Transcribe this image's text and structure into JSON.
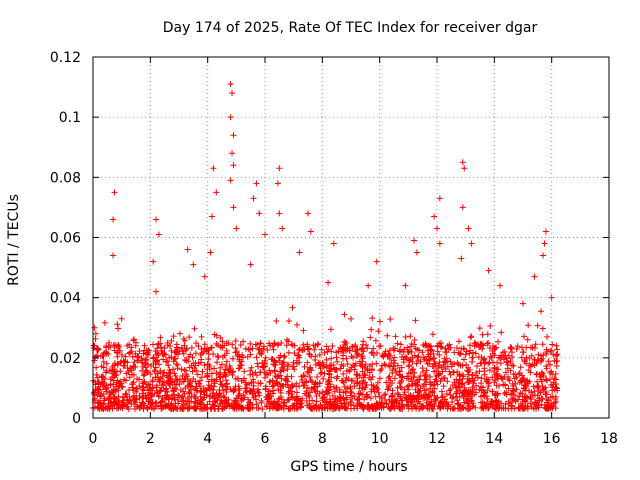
{
  "chart_data": {
    "type": "scatter",
    "title": "Day 174 of 2025, Rate Of TEC Index for receiver dgar",
    "xlabel": "GPS time / hours",
    "ylabel": "ROTI / TECUs",
    "xlim": [
      0,
      18
    ],
    "ylim": [
      0,
      0.12
    ],
    "xticks": [
      "0",
      "2",
      "4",
      "6",
      "8",
      "10",
      "12",
      "14",
      "16",
      "18"
    ],
    "yticks": [
      "0",
      "0.02",
      "0.04",
      "0.06",
      "0.08",
      "0.1",
      "0.12"
    ],
    "grid": true,
    "marker": "plus",
    "color": "#ff0000",
    "x_data_range": [
      0,
      16.2
    ],
    "baseline_band": [
      0.003,
      0.025
    ],
    "notable_points": [
      {
        "x": 0.75,
        "y": 0.075
      },
      {
        "x": 0.7,
        "y": 0.066
      },
      {
        "x": 0.7,
        "y": 0.054
      },
      {
        "x": 1.0,
        "y": 0.033
      },
      {
        "x": 1.5,
        "y": 0.025
      },
      {
        "x": 2.1,
        "y": 0.052
      },
      {
        "x": 2.2,
        "y": 0.066
      },
      {
        "x": 2.3,
        "y": 0.061
      },
      {
        "x": 2.2,
        "y": 0.042
      },
      {
        "x": 3.3,
        "y": 0.056
      },
      {
        "x": 3.5,
        "y": 0.051
      },
      {
        "x": 3.9,
        "y": 0.047
      },
      {
        "x": 4.1,
        "y": 0.055
      },
      {
        "x": 4.2,
        "y": 0.083
      },
      {
        "x": 4.3,
        "y": 0.075
      },
      {
        "x": 4.15,
        "y": 0.067
      },
      {
        "x": 4.8,
        "y": 0.111
      },
      {
        "x": 4.85,
        "y": 0.108
      },
      {
        "x": 4.8,
        "y": 0.1
      },
      {
        "x": 4.9,
        "y": 0.094
      },
      {
        "x": 4.85,
        "y": 0.088
      },
      {
        "x": 4.9,
        "y": 0.084
      },
      {
        "x": 4.8,
        "y": 0.079
      },
      {
        "x": 4.9,
        "y": 0.07
      },
      {
        "x": 5.0,
        "y": 0.063
      },
      {
        "x": 5.5,
        "y": 0.051
      },
      {
        "x": 5.7,
        "y": 0.078
      },
      {
        "x": 5.6,
        "y": 0.073
      },
      {
        "x": 5.8,
        "y": 0.068
      },
      {
        "x": 6.0,
        "y": 0.061
      },
      {
        "x": 6.5,
        "y": 0.083
      },
      {
        "x": 6.45,
        "y": 0.078
      },
      {
        "x": 6.5,
        "y": 0.068
      },
      {
        "x": 6.6,
        "y": 0.063
      },
      {
        "x": 7.2,
        "y": 0.055
      },
      {
        "x": 7.5,
        "y": 0.068
      },
      {
        "x": 7.6,
        "y": 0.062
      },
      {
        "x": 8.4,
        "y": 0.058
      },
      {
        "x": 8.2,
        "y": 0.045
      },
      {
        "x": 9.9,
        "y": 0.052
      },
      {
        "x": 9.6,
        "y": 0.044
      },
      {
        "x": 10.9,
        "y": 0.044
      },
      {
        "x": 11.2,
        "y": 0.059
      },
      {
        "x": 11.3,
        "y": 0.055
      },
      {
        "x": 11.9,
        "y": 0.067
      },
      {
        "x": 12.1,
        "y": 0.073
      },
      {
        "x": 12.0,
        "y": 0.063
      },
      {
        "x": 12.1,
        "y": 0.058
      },
      {
        "x": 12.9,
        "y": 0.085
      },
      {
        "x": 12.95,
        "y": 0.083
      },
      {
        "x": 12.9,
        "y": 0.07
      },
      {
        "x": 13.1,
        "y": 0.063
      },
      {
        "x": 13.2,
        "y": 0.058
      },
      {
        "x": 12.85,
        "y": 0.053
      },
      {
        "x": 13.8,
        "y": 0.049
      },
      {
        "x": 14.2,
        "y": 0.044
      },
      {
        "x": 15.0,
        "y": 0.038
      },
      {
        "x": 15.4,
        "y": 0.047
      },
      {
        "x": 15.8,
        "y": 0.062
      },
      {
        "x": 15.75,
        "y": 0.058
      },
      {
        "x": 15.7,
        "y": 0.054
      },
      {
        "x": 16.0,
        "y": 0.04
      },
      {
        "x": 0.05,
        "y": 0.03
      },
      {
        "x": 0.1,
        "y": 0.028
      }
    ]
  }
}
